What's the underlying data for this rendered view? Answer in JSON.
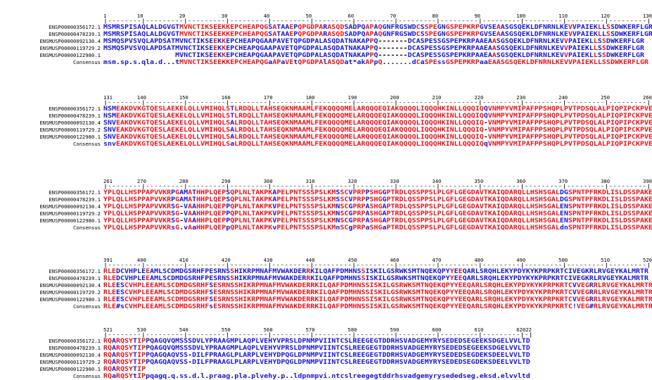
{
  "alignment": {
    "names": [
      "ENSP00000356172.1",
      "ENSP00000478239.1",
      "ENSMUSP00000092130.4",
      "ENSMUSP00000119729.2",
      "ENSMUSP00000122980.1",
      "Consensus"
    ],
    "blocks": [
      {
        "ruler": [
          "1",
          "10",
          "20",
          "30",
          "40",
          "50",
          "60",
          "70",
          "80",
          "90",
          "100",
          "110",
          "120",
          "130"
        ],
        "rows": [
          "MSMRSPISAQLALDGVGTMVNCTIKSEEKKEPCHEAPQGSATAAEPQPGDPARASQDSADPQAPAQGNFRGSWDCSSPEGNGSPEPKRPGVSEAASGSQEKLDFNRNLKEVVPAIEKLLSSDWKERFLGR",
          "MSMRSPISAQLALDGVGTMVNCTIKSEEKKEPCHEAPQGSATAAEPQPGDPARASQDSADPQAPAQGNFRGSWDCSSPEGNGSPEPKRPGVSEAASGSQEKLDFNRNLKEVVPAIEKLLSSDWKERFLGR",
          "MSMQSPVSVQLAPDSATMVNCTIKSEEKKEPCHEAPQGAAPAVETQPGDPALASQDATNAKAPPQ-------DCASPESSGSPEPKRPAAEAASGSQEKLDFNRNLKEVVPAIEKLLSSDWKERFLGR",
          "MSMQSPVSVQLAPDSATMVNCTIKSEEKKEPCHEAPQGAAPAVETQPGDPALASQDATNAKAPPQ-------DCASPESSGSPEPKRPAAEAASGSQEKLDFNRNLKEVVPAIEKLLSSDWKERFLGR",
          "                 MVNCTIKSEEKKEPCHEAPQGAAPAVETQPGDPALASQDATNAKAPPQ-------DCASPESSGSPEPKRPAAEAASGSQEKLDFNRNLKEVVPAIEKLLSSDWKERFLGR",
          "msm.sp.s.qla.d...tMVNCTIKSEEKKEPCHEAPQGaAPaVEtQPGDPAlASQDat*akAPpQ.......dCaSPEssGSPEPKRPaaEAASGSQEKLDFNRNLKEVVPAIEKLLSSDWKERFLGR"
        ]
      },
      {
        "ruler": [
          "131",
          "140",
          "150",
          "160",
          "170",
          "180",
          "190",
          "200",
          "210",
          "220",
          "230",
          "240",
          "250",
          "260"
        ],
        "rows": [
          "NSMEAKDVKGTQESLAEKELQLLVMIHQLSTLRDQLLTAHSEQKNMAAMLFEKQQQQMELARQQQEQIAKQQQQLIQQQHKINLLQQQIQQVNMPYVMIPAFPPSHQPLPVTPDSQLALPIQPIPCKPVE",
          "NSMEAKDVKGTQESLAEKELQLLVMIHQLSTLRDQLLTAHSEQKNMAAMLFEKQQQQMELARQQQEQIAKQQQQLIQQQHKINLLQQQIQQVNMPYVMIPAFPPSHQPLPVTPDSQLALPIQPIPCKPVE",
          "SNVEAKDVKGTQESLAEKELQLLVMIHQLSALRDQLLTAHSEQKNMAAMLFEKQQQQMELARQQQEQIAKQQQQLIQQQHKINLLQQQIQ-VNMPYVMIPAFPPSHQPLPVTPDSQLALPIQPIPCKPVE",
          "SNVEAKDVKGTQESLAEKELQLLVMIHQLSALRDQLLTAHSEQKNMAAMLFEKQQQQMELARQQQEQIAKQQQQLIQQQHKINLLQQQIQ-VNMPYVMIPAFPPSHQPLPVTPDSQLALPIQPIPCKPVE",
          "SNVEAKDVKGTQESLAEKELQLLVMIHQLSALRDQLLTAHSEQKNMAAMLFEKQQQQMELARQQQEQIAKQQQQLIQQQHKINLLQQQIQ-VNMPYVMIPAFPPSHQPLPVTPDSQLALPIQPIPCKPVE",
          "snvEAKDVKGTQESLAEKELQLLVMIHQLSaLRDQLLTAHSEQKNMAAMLFEKQQQQMELARQQQEQIAKQQQQLIQQQHKINLLQQQIQqVNMPYVMIPAFPPSHQPLPVTPDSQLALPIQPIPCKPVE"
        ]
      },
      {
        "ruler": [
          "261",
          "270",
          "280",
          "290",
          "300",
          "310",
          "320",
          "330",
          "340",
          "350",
          "360",
          "370",
          "380",
          "390"
        ],
        "rows": [
          "YPLQLLHSPPAPVVKRPGAMATHHPLQEPSQPLNLTAKPKAPELPNTSSSPSLKMSSCVPRPPSHGGPTRDLQSSPPSLPLGFLGEGDAVTKAIQDARQLLHSHSGALDGSPNTPFRKDLISLDSSPAKE",
          "YPLQLLHSPPAPVVKRPGAMATHHPLQEPSQPLNLTAKPKAPELPNTSSSPSLKMSSCVPRPPSHGGPTRDLQSSPPSLPLGFLGEGDAVTKAIQDARQLLHSHSGALDGSPNTPFRKDLISLDSSPAKE",
          "YPLQLLHSPPAPVVKRSG-VAAHHPLQEPPQPLNLTAKPKVPELPNTSSSPSLKMNSCGPRPASHGAPTRDLQSSPPSLPLGFLGEGDAVTKAIQDARQLLHSHSGALENSPNTPFRKDLISLDSSPAKE",
          "YPLQLLHSPPAPVVKRSG-VAAHHPLQEPPQPLNLTAKPKVPELPNTSSSPSLKMNSCGPRPASHGAPTRDLQSSPPSLPLGFLGEGDAVTKAIQDARQLLHSHSGALENSPNTPFRKDLISLDSSPAKE",
          "YPLQLLHSPPAPVVKRSG-VAAHHPLQEPPQPLNLTAKPKVPELPNTSSSPSLKMNSCGPRPASHGAPTRDLQSSPPSLPLGFLGEGDAVTKAIQDARQLLHSHSGALENSPNTPFRKDLISLDSSPAKE",
          "YPLQLLHSPPAPVVKRsG.vAaHHPLQEPpQPLNLTAKPKvPELPNTSSSPSLKMnSCgPRPaSHGaPTRDLQSSPPSLPLGFLGEGDAVTKAIQDARQLLHSHSGALdnSPNTPFRKDLISLDSSPAKE"
        ]
      },
      {
        "ruler": [
          "391",
          "400",
          "410",
          "420",
          "430",
          "440",
          "450",
          "460",
          "470",
          "480",
          "490",
          "500",
          "510",
          "520"
        ],
        "rows": [
          "RLEDCVHPLEEAMLSCDMDGSRHFPESRNSSHIKRPMNAFMVWAKDERRKILQAFPDMHNSSISKILGSRWKSMTNQEKQPYYEEQARLSRQHLEKYPDYKYKPRPKRTCIVEGKRLRVGEYKALMRTR",
          "RLEDCVHPLEEAMLSCDMDGSRHFPESRNSSHIKRPMNAFMVWAKDERRKILQAFPDMHNSSISKILGSRWKSMTNQEKQPYYEEQARLSRQHLEKYPDYKYKPRPKRTCIVEGKRLRVGEYKALMRTR",
          "RLEESCVHPLEEAMLSCDMDGSRHFSESRNSSHIKRPMNAFMVWAKDERRKILQAFPDMHNSSISKILGSRWKSMTNQEKQPYYEEQARLSRQHLEKYPDYKYKPRPKRTCVVEGRRLRVGEYKALMRTR",
          "RLEESCVHPLEEAMLSCDMDGSRHFSESRNSSHIKRPMNAFMVWAKDERRKILQAFPDMHNSSISKILGSRWKSMTNQEKQPYYEEQARLSRQHLEKYPDYKYKPRPKRTCVVEGRRLRVGEYKALMRTR",
          "RLEESCVHPLEEAMLSCDMDGSRHFSESRNSSHIKRPMNAFMVWAKDERRKILQAFPDMHNSSISKILGSRWKSMTNQEKQPYYEEQARLSRQHLEKYPDYKYKPRPKRTCVVEGRRLRVGEYKALMRTR",
          "RLE#sCVHPLEEAMLSCDMDGSRHFsESRNSSHIKRPMNAFMVWAKDERRKILQAFPDMHNSSISKILGSRWKSMTNQEKQPYYEEQARLSRQHLEKYPDYKYKPRPKRTC!VEG#RLRVGEYKALMRTR"
        ]
      },
      {
        "ruler": [
          "521",
          "530",
          "540",
          "550",
          "560",
          "570",
          "580",
          "590",
          "600",
          "610",
          "62022"
        ],
        "rows": [
          "RQARQSYTIPPQAGQVQMSSSDVLYPRAAGMPLAQPLVEHYVPRSLDPNMPVIINTCSLREEGEGTDDRHSVADGEMYRYSEDEDSEGEEKSDGELVVLTD",
          "RQARQSYTIPPQAGQVQMSSSDVLYPRAAGMPLAQPLVEHYVPRSLDPNMPVIINTCSLREEGEGTDDRHSVADGEMYRYSEDEDSEGEEKSDGELVVLTD",
          "RQARQSYTIPPQAGQAQVSS-DILFPRAAGLPLARPLVEHYDPQGLDPNMPVIINTCSLREEGEGTDDRHSVADGEMYRYSEDEDSEGDEKSDEELVVLTD",
          "RQARQSYTIPPQAGQAQVSS-DILFPRAAGLPLARPLVEHYDPQGLDPNMPVIINTCSLREEGEGTDDRHSVADGEMYRYSEDEDSEGDEKSDEELVVLTD",
          "RQARQSYTIP",
          "RQaRQSYtIPpqagq.q.ss.d.l.praag.pla.plvehy.p..ldpnmpvi.ntcslreegegtddrhsvadgemyrysededseg.eksd.elvvltd"
        ]
      }
    ],
    "colors": {
      "high": "#e8121a",
      "low": "#1515d8",
      "neutral": "#000000"
    }
  }
}
